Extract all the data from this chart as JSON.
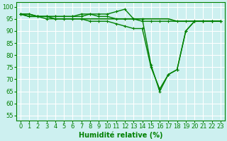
{
  "line1": {
    "x": [
      0,
      1,
      2,
      3,
      4,
      5,
      6,
      7,
      8,
      9,
      10,
      11,
      12,
      13,
      14,
      15,
      16,
      17,
      18,
      19,
      20,
      21,
      22,
      23
    ],
    "y": [
      97,
      97,
      96,
      96,
      96,
      96,
      96,
      97,
      97,
      97,
      97,
      98,
      99,
      95,
      94,
      94,
      94,
      94,
      94,
      94,
      94,
      94,
      94,
      94
    ],
    "color": "#008000",
    "linewidth": 1.0,
    "marker": "+"
  },
  "line2": {
    "x": [
      0,
      1,
      2,
      3,
      4,
      5,
      6,
      7,
      8,
      9,
      10,
      11,
      12,
      13,
      14,
      15,
      16,
      17,
      18,
      19,
      20,
      21,
      22,
      23
    ],
    "y": [
      97,
      96,
      96,
      96,
      95,
      95,
      95,
      95,
      95,
      95,
      95,
      95,
      95,
      95,
      95,
      95,
      95,
      95,
      94,
      94,
      94,
      94,
      94,
      94
    ],
    "color": "#008000",
    "linewidth": 1.2,
    "marker": null
  },
  "line3": {
    "x": [
      0,
      1,
      2,
      3,
      4,
      5,
      6,
      7,
      8,
      9,
      10,
      11,
      12,
      13,
      14,
      15,
      16,
      17,
      18,
      19,
      20,
      21,
      22,
      23
    ],
    "y": [
      97,
      96,
      96,
      95,
      95,
      95,
      95,
      95,
      94,
      94,
      94,
      93,
      92,
      91,
      91,
      75,
      66,
      72,
      74,
      90,
      94,
      94,
      94,
      94
    ],
    "color": "#008000",
    "linewidth": 1.0,
    "marker": "+"
  },
  "line4": {
    "x": [
      0,
      1,
      2,
      3,
      4,
      5,
      6,
      7,
      8,
      9,
      10,
      11,
      12,
      13,
      14,
      15,
      16,
      17,
      18,
      19,
      20,
      21,
      22,
      23
    ],
    "y": [
      97,
      97,
      96,
      96,
      96,
      96,
      96,
      96,
      97,
      96,
      96,
      95,
      95,
      95,
      95,
      76,
      65,
      72,
      74,
      90,
      94,
      94,
      94,
      94
    ],
    "color": "#008000",
    "linewidth": 1.0,
    "marker": "+"
  },
  "background_color": "#cdf0f0",
  "grid_color": "#ffffff",
  "xlabel": "Humidité relative (%)",
  "xlabel_color": "#008000",
  "xlabel_fontsize": 7,
  "ylim": [
    53,
    102
  ],
  "xlim": [
    -0.5,
    23.5
  ],
  "yticks": [
    55,
    60,
    65,
    70,
    75,
    80,
    85,
    90,
    95,
    100
  ],
  "xticks": [
    0,
    1,
    2,
    3,
    4,
    5,
    6,
    7,
    8,
    9,
    10,
    11,
    12,
    13,
    14,
    15,
    16,
    17,
    18,
    19,
    20,
    21,
    22,
    23
  ],
  "tick_fontsize": 6,
  "tick_color": "#008000",
  "marker_size": 3,
  "marker_edge_width": 0.8
}
